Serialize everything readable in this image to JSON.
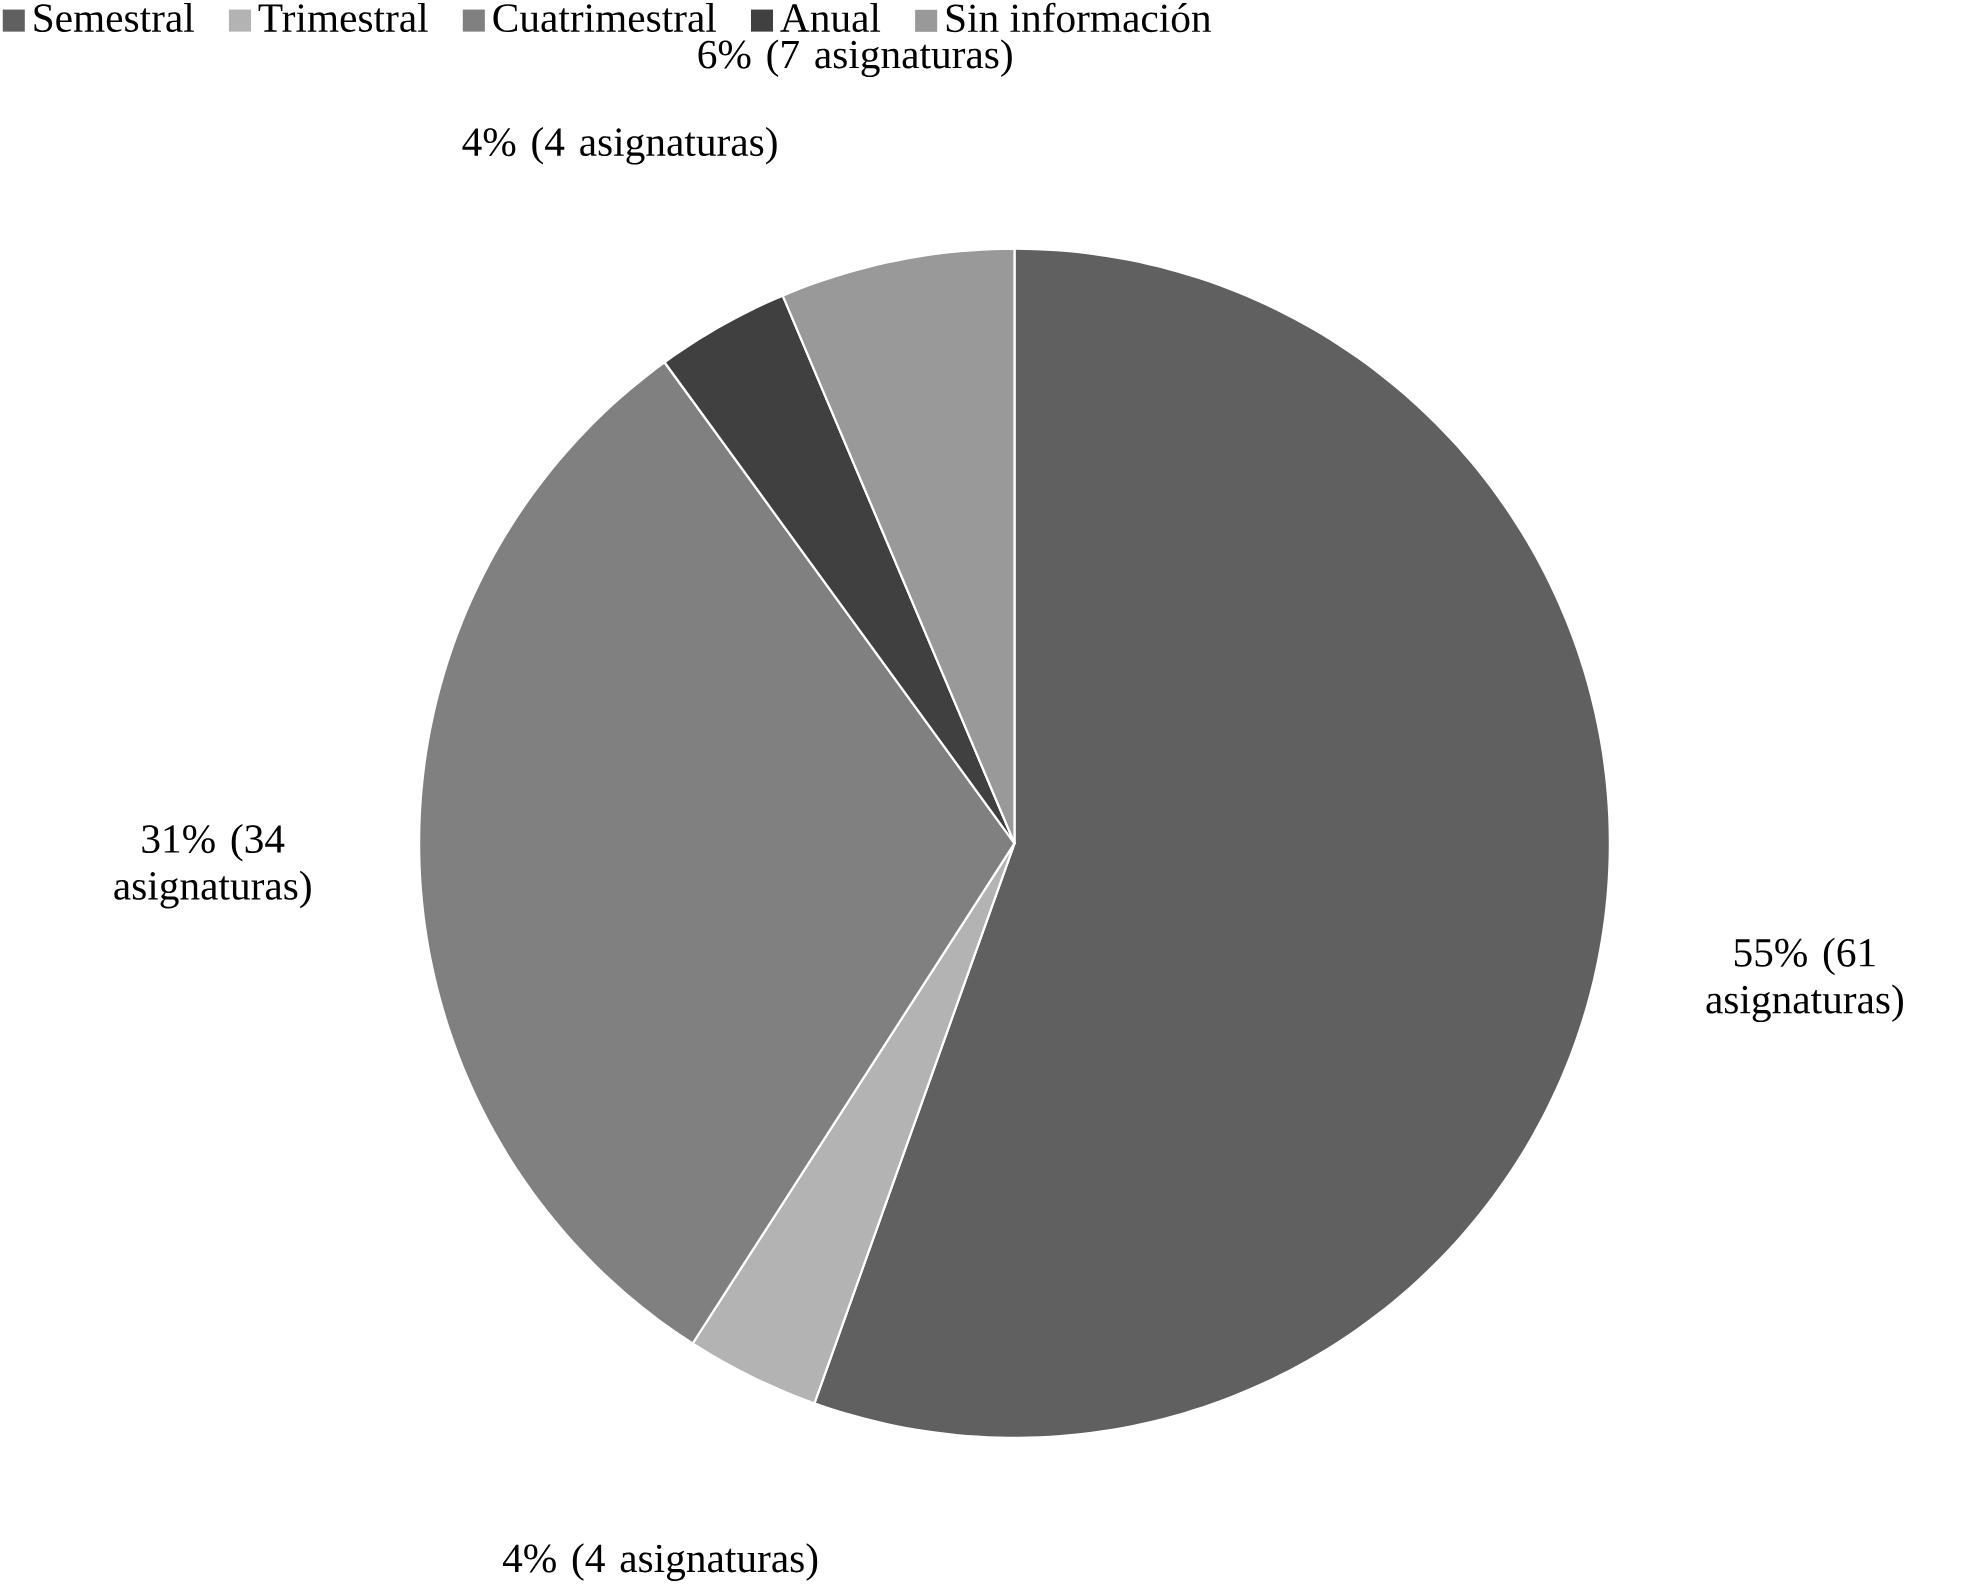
{
  "chart_data": {
    "type": "pie",
    "categories": [
      "Semestral",
      "Trimestral",
      "Cuatrimestral",
      "Anual",
      "Sin información"
    ],
    "values": [
      61,
      4,
      34,
      4,
      7
    ],
    "colors": [
      "#606060",
      "#b3b3b3",
      "#808080",
      "#404040",
      "#999999"
    ],
    "value_labels": [
      "55% (61 asignaturas)",
      "4% (4 asignaturas)",
      "31% (34 asignaturas)",
      "4% (4 asignaturas)",
      "6% (7 asignaturas)"
    ],
    "legend": "top"
  }
}
